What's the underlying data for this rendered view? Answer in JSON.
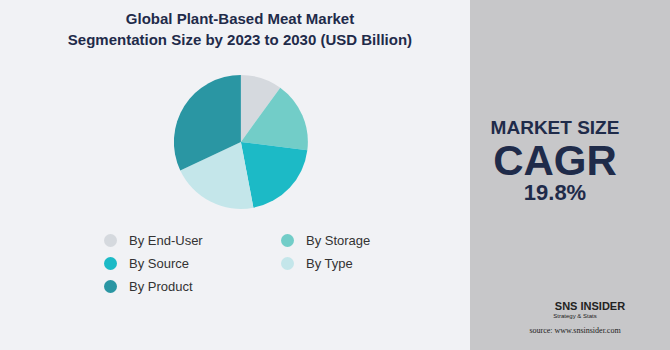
{
  "chart_data": {
    "type": "pie",
    "title": "Global Plant-Based Meat Market\nSegmentation Size by 2023 to 2030 (USD Billion)",
    "categories": [
      "By End-User",
      "By Storage",
      "By Source",
      "By Type",
      "By Product"
    ],
    "values": [
      10,
      17,
      20,
      21,
      32
    ],
    "colors": [
      "#d5d9de",
      "#72cdc8",
      "#1cbac6",
      "#c4e6ea",
      "#2a96a3"
    ],
    "data_labels": false,
    "annotations": [
      "MARKET SIZE",
      "CAGR",
      "19.8%",
      "SNS INSIDER",
      "Strategy & Stats",
      "source: www.snsinsider.com"
    ]
  }
}
